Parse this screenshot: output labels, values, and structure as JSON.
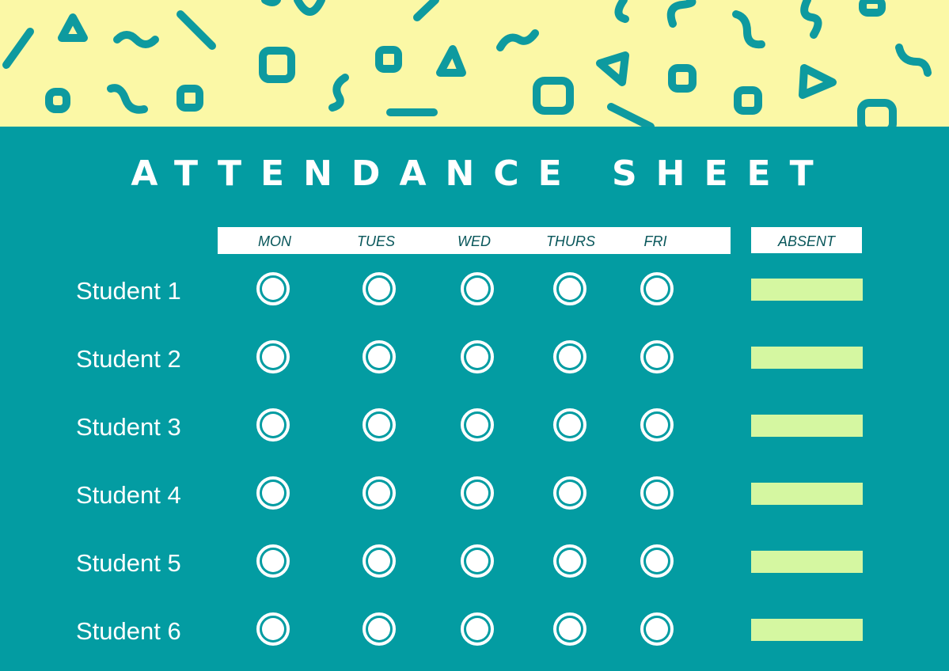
{
  "title": "ATTENDANCE SHEET",
  "colors": {
    "pattern_background": "#fbf8a6",
    "pattern_shapes": "#0e9a9f",
    "panel_background": "#039ca2",
    "header_text": "#08565a",
    "absent_field": "#d5f7a1",
    "text": "#ffffff"
  },
  "days": [
    "MON",
    "TUES",
    "WED",
    "THURS",
    "FRI"
  ],
  "absent_label": "ABSENT",
  "students": [
    {
      "name": "Student 1"
    },
    {
      "name": "Student 2"
    },
    {
      "name": "Student 3"
    },
    {
      "name": "Student 4"
    },
    {
      "name": "Student 5"
    },
    {
      "name": "Student 6"
    }
  ]
}
